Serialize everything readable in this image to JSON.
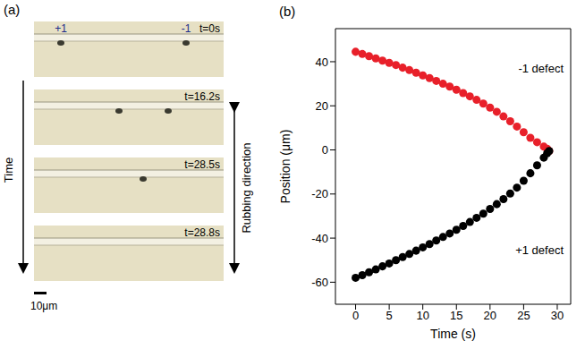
{
  "panel_a": {
    "letter": "(a)",
    "frames": [
      {
        "time": "t=0s",
        "labels": [
          "+1",
          "-1"
        ]
      },
      {
        "time": "t=16.2s",
        "labels": []
      },
      {
        "time": "t=28.5s",
        "labels": []
      },
      {
        "time": "t=28.8s",
        "labels": []
      }
    ],
    "time_arrow": "Time",
    "rubbing": "Rubbing direction",
    "scale": "10μm"
  },
  "chart_data": {
    "type": "scatter",
    "panel_label": "(b)",
    "x_label": "Time (s)",
    "y_label": "Position (μm)",
    "marker": "circle",
    "x": [
      0,
      1,
      2,
      3,
      4,
      5,
      6,
      7,
      8,
      9,
      10,
      11,
      12,
      13,
      14,
      15,
      16,
      17,
      18,
      19,
      20,
      21,
      22,
      23,
      24,
      25,
      26,
      27,
      28,
      28.5,
      28.8
    ],
    "series": [
      {
        "name": "-1 defect",
        "color": "#e8202a",
        "values": [
          44.5,
          43.5,
          42.5,
          41.5,
          40.5,
          39.5,
          38.5,
          37.3,
          36.2,
          35,
          33.8,
          32.6,
          31.3,
          30,
          28.7,
          27.3,
          25.8,
          24.3,
          22.7,
          21,
          19.2,
          17.3,
          15.2,
          13,
          10.6,
          8,
          5.5,
          3.5,
          1.5,
          0.5,
          -0.5
        ]
      },
      {
        "name": "+1 defect",
        "color": "#000000",
        "values": [
          -58,
          -56.8,
          -55.5,
          -54.2,
          -52.8,
          -51.5,
          -50,
          -48.6,
          -47.2,
          -45.7,
          -44.2,
          -42.7,
          -41.1,
          -39.5,
          -37.9,
          -36.2,
          -34.5,
          -32.7,
          -30.8,
          -28.9,
          -26.8,
          -24.6,
          -22.3,
          -19.8,
          -17.1,
          -14,
          -10.6,
          -7,
          -3.5,
          -1.5,
          -0.5
        ]
      }
    ],
    "xlim": [
      -3,
      32
    ],
    "xticks": [
      0,
      5,
      10,
      15,
      20,
      25,
      30
    ],
    "ylim": [
      -70,
      55
    ],
    "yticks": [
      -60,
      -40,
      -20,
      0,
      20,
      40
    ]
  }
}
